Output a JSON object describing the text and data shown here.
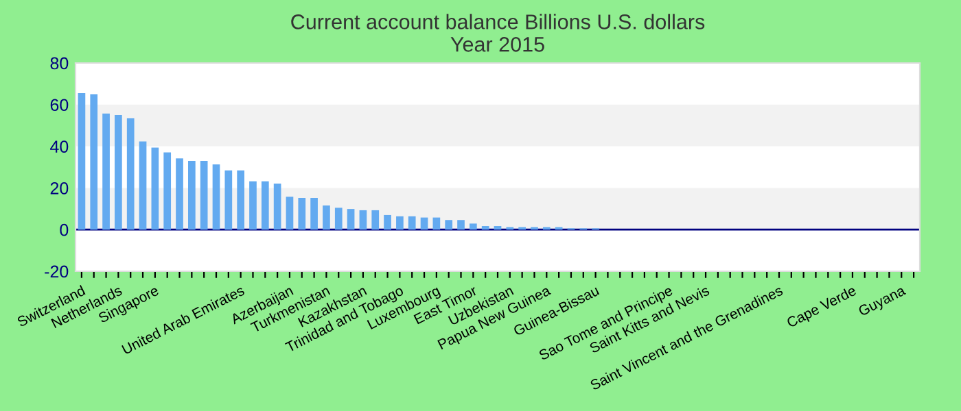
{
  "chart_data": {
    "type": "bar",
    "title": "Current account balance Billions U.S. dollars\nYear 2015",
    "categories": [
      "Switzerland",
      null,
      null,
      "Netherlands",
      null,
      null,
      "Singapore",
      null,
      null,
      null,
      null,
      null,
      null,
      "United Arab Emirates",
      null,
      null,
      null,
      "Azerbaijan",
      null,
      null,
      "Turkmenistan",
      null,
      null,
      "Kazakhstan",
      null,
      null,
      "Trinidad and Tobago",
      null,
      null,
      "Luxembourg",
      null,
      null,
      "East Timor",
      null,
      null,
      "Uzbekistan",
      null,
      null,
      "Papua New Guinea",
      null,
      null,
      null,
      "Guinea-Bissau",
      null,
      null,
      null,
      null,
      null,
      "Sao Tome and Principe",
      null,
      null,
      "Saint Kitts and Nevis",
      null,
      null,
      null,
      null,
      null,
      "Saint Vincent and the Grenadines",
      null,
      null,
      null,
      null,
      null,
      "Cape Verde",
      null,
      null,
      null,
      "Guyana",
      null
    ],
    "values": [
      65.5,
      65,
      55.7,
      55,
      53.5,
      42.3,
      39.4,
      37.1,
      34.2,
      33,
      33,
      31.3,
      28.4,
      28.4,
      23.2,
      23.2,
      22.1,
      15.8,
      15.2,
      15.2,
      11.6,
      10.5,
      9.9,
      9.3,
      9.3,
      7.0,
      6.4,
      6.4,
      5.8,
      5.8,
      4.6,
      4.6,
      2.9,
      1.7,
      1.7,
      1.2,
      1.2,
      1.2,
      1.2,
      1.2,
      0.6,
      0.6,
      0.6,
      0,
      0,
      0,
      0,
      0,
      0,
      0,
      0,
      0,
      0,
      0,
      0,
      0,
      0,
      0,
      0,
      0,
      0,
      0,
      0,
      0,
      0,
      0,
      0,
      0,
      0
    ],
    "color": "#63aaf0",
    "ylim": [
      -20,
      80
    ],
    "yticks": [
      -20,
      0,
      20,
      40,
      60,
      80
    ],
    "grid": false,
    "bands": [
      {
        "axis": "y",
        "from": 0,
        "to": 20,
        "color": "#f2f2f2"
      },
      {
        "axis": "y",
        "from": 40,
        "to": 60,
        "color": "#f2f2f2"
      }
    ],
    "ref_lines": [
      {
        "axis": "y",
        "value": 0,
        "color": "#000080"
      }
    ]
  }
}
